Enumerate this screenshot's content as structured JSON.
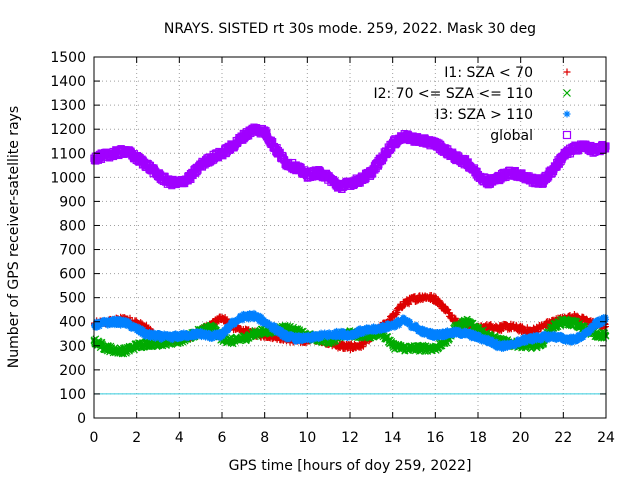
{
  "chart_data": {
    "type": "scatter",
    "title": "NRAYS. SISTED rt 30s mode. 259, 2022. Mask 30 deg",
    "xlabel": "GPS time [hours of doy 259, 2022]",
    "ylabel": "Number of GPS receiver-satellite rays",
    "xlim": [
      0,
      24
    ],
    "ylim": [
      0,
      1500
    ],
    "xticks": [
      "0",
      "2",
      "4",
      "6",
      "8",
      "10",
      "12",
      "14",
      "16",
      "18",
      "20",
      "22",
      "24"
    ],
    "yticks": [
      "0",
      "100",
      "200",
      "300",
      "400",
      "500",
      "600",
      "700",
      "800",
      "900",
      "1000",
      "1100",
      "1200",
      "1300",
      "1400",
      "1500"
    ],
    "grid": true,
    "legend_position": "top-right",
    "reference_line": {
      "y": 100,
      "color": "#33ccdd"
    },
    "series": [
      {
        "name": "I1: SZA < 70",
        "marker": "+",
        "color": "#dd0000",
        "x": [
          0,
          1,
          1.5,
          2,
          2.5,
          3,
          3.5,
          4,
          4.5,
          5,
          5.5,
          6,
          6.5,
          7,
          7.5,
          8,
          8.5,
          9,
          9.5,
          10,
          10.5,
          11,
          11.5,
          12,
          12.5,
          13,
          13.5,
          14,
          14.5,
          15,
          15.5,
          16,
          16.5,
          17,
          17.5,
          18,
          18.5,
          19,
          19.5,
          20,
          20.5,
          21,
          21.5,
          22,
          22.5,
          23,
          23.5,
          24
        ],
        "y": [
          390,
          405,
          410,
          395,
          370,
          330,
          325,
          330,
          340,
          360,
          385,
          420,
          380,
          360,
          350,
          345,
          340,
          330,
          320,
          325,
          330,
          315,
          300,
          295,
          300,
          340,
          380,
          420,
          475,
          495,
          505,
          495,
          450,
          400,
          370,
          370,
          380,
          375,
          380,
          370,
          360,
          380,
          400,
          410,
          420,
          405,
          390,
          380
        ]
      },
      {
        "name": "I2: 70 <= SZA <= 110",
        "marker": "x",
        "color": "#00aa00",
        "x": [
          0,
          0.5,
          1,
          1.5,
          2,
          2.5,
          3,
          3.5,
          4,
          4.5,
          5,
          5.5,
          6,
          6.5,
          7,
          7.5,
          8,
          8.5,
          9,
          9.5,
          10,
          10.5,
          11,
          11.5,
          12,
          12.5,
          13,
          13.5,
          14,
          14.5,
          15,
          15.5,
          16,
          16.5,
          17,
          17.5,
          18,
          18.5,
          19,
          19.5,
          20,
          20.5,
          21,
          21.5,
          22,
          22.5,
          23,
          23.5,
          24
        ],
        "y": [
          320,
          295,
          280,
          280,
          300,
          310,
          310,
          315,
          320,
          340,
          360,
          380,
          330,
          320,
          330,
          350,
          360,
          365,
          375,
          360,
          340,
          330,
          320,
          340,
          350,
          345,
          345,
          355,
          300,
          290,
          290,
          290,
          290,
          320,
          380,
          400,
          370,
          340,
          320,
          310,
          305,
          300,
          310,
          380,
          400,
          395,
          370,
          350,
          340
        ]
      },
      {
        "name": "I3: SZA > 110",
        "marker": "*",
        "color": "#0080ff",
        "x": [
          0,
          0.5,
          1,
          1.5,
          2,
          2.5,
          3,
          3.5,
          4,
          4.5,
          5,
          5.5,
          6,
          6.5,
          7,
          7.5,
          8,
          8.5,
          9,
          9.5,
          10,
          10.5,
          11,
          11.5,
          12,
          12.5,
          13,
          13.5,
          14,
          14.5,
          15,
          15.5,
          16,
          16.5,
          17,
          17.5,
          18,
          18.5,
          19,
          19.5,
          20,
          20.5,
          21,
          21.5,
          22,
          22.5,
          23,
          23.5,
          24
        ],
        "y": [
          385,
          395,
          400,
          395,
          370,
          345,
          340,
          335,
          340,
          345,
          350,
          340,
          345,
          395,
          420,
          425,
          400,
          370,
          340,
          330,
          330,
          340,
          345,
          350,
          345,
          360,
          365,
          375,
          385,
          405,
          380,
          355,
          345,
          350,
          355,
          350,
          335,
          320,
          300,
          300,
          320,
          330,
          335,
          340,
          330,
          325,
          345,
          390,
          410
        ]
      },
      {
        "name": "global",
        "marker": "□",
        "color": "#a000ff",
        "x": [
          0,
          0.5,
          1,
          1.5,
          2,
          2.5,
          3,
          3.5,
          4,
          4.5,
          5,
          5.5,
          6,
          6.5,
          7,
          7.5,
          8,
          8.5,
          9,
          9.5,
          10,
          10.5,
          11,
          11.5,
          12,
          12.5,
          13,
          13.5,
          14,
          14.5,
          15,
          15.5,
          16,
          16.5,
          17,
          17.5,
          18,
          18.5,
          19,
          19.5,
          20,
          20.5,
          21,
          21.5,
          22,
          22.5,
          23,
          23.5,
          24
        ],
        "y": [
          1080,
          1090,
          1100,
          1110,
          1080,
          1050,
          1010,
          980,
          975,
          1000,
          1050,
          1080,
          1100,
          1130,
          1170,
          1200,
          1190,
          1120,
          1060,
          1040,
          1010,
          1020,
          1000,
          960,
          975,
          990,
          1020,
          1080,
          1140,
          1170,
          1160,
          1150,
          1140,
          1110,
          1080,
          1060,
          1010,
          980,
          1000,
          1020,
          1010,
          990,
          980,
          1030,
          1090,
          1120,
          1130,
          1110,
          1130
        ]
      }
    ]
  }
}
